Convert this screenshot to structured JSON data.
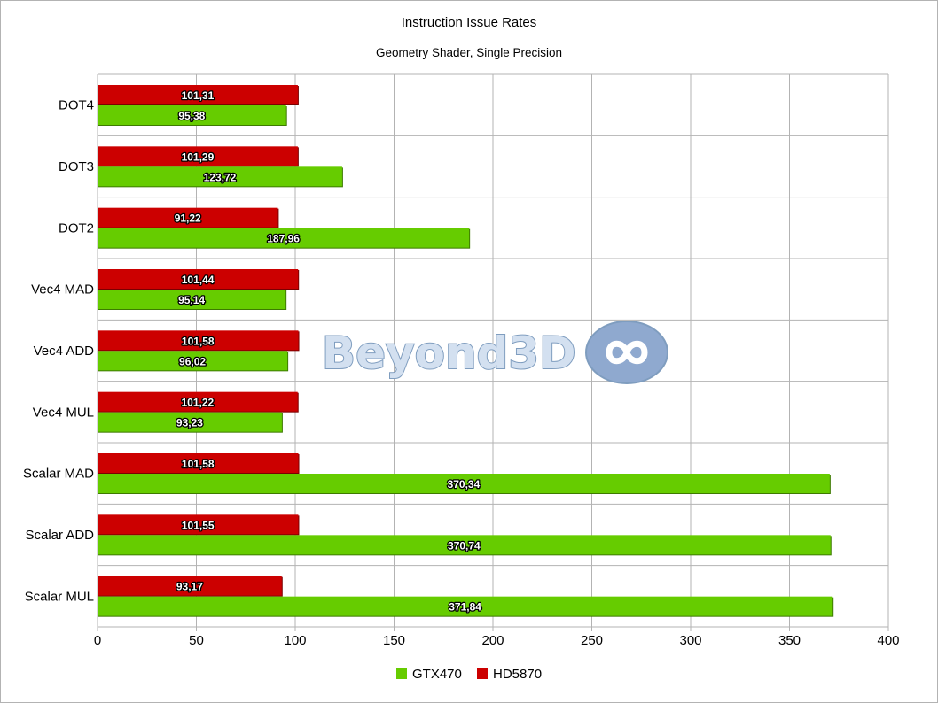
{
  "chart_data": {
    "type": "bar",
    "orientation": "horizontal",
    "title": "Instruction Issue Rates",
    "subtitle": "Geometry Shader, Single Precision",
    "categories": [
      "DOT4",
      "DOT3",
      "DOT2",
      "Vec4 MAD",
      "Vec4 ADD",
      "Vec4 MUL",
      "Scalar MAD",
      "Scalar ADD",
      "Scalar MUL"
    ],
    "series": [
      {
        "name": "GTX470",
        "color": "#66cc00",
        "values": [
          95.38,
          123.72,
          187.96,
          95.14,
          96.02,
          93.23,
          370.34,
          370.74,
          371.84
        ],
        "labels": [
          "95,38",
          "123,72",
          "187,96",
          "95,14",
          "96,02",
          "93,23",
          "370,34",
          "370,74",
          "371,84"
        ]
      },
      {
        "name": "HD5870",
        "color": "#cc0000",
        "values": [
          101.31,
          101.29,
          91.22,
          101.44,
          101.58,
          101.22,
          101.58,
          101.55,
          93.17
        ],
        "labels": [
          "101,31",
          "101,29",
          "91,22",
          "101,44",
          "101,58",
          "101,22",
          "101,58",
          "101,55",
          "93,17"
        ]
      }
    ],
    "xlim": [
      0,
      400
    ],
    "xticks": [
      0,
      50,
      100,
      150,
      200,
      250,
      300,
      350,
      400
    ],
    "grid": true,
    "legend_position": "bottom",
    "watermark": "Beyond3D"
  }
}
